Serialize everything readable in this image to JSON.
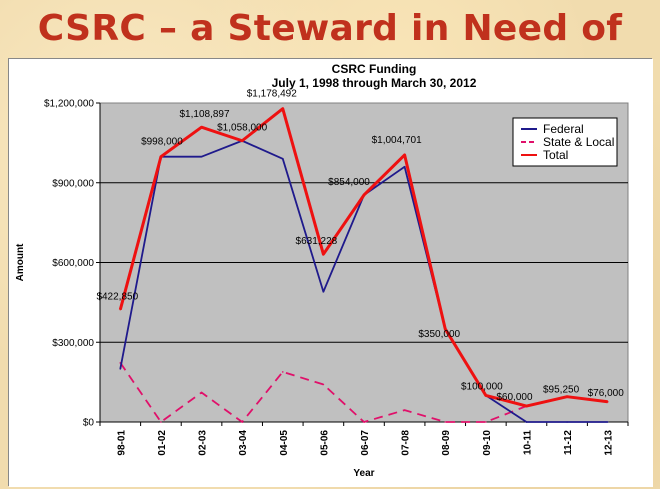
{
  "slide": {
    "title": "CSRC – a Steward in Need of Funding"
  },
  "chart_data": {
    "type": "line",
    "title": "CSRC Funding",
    "subtitle": "July 1, 1998 through March 30, 2012",
    "xlabel": "Year",
    "ylabel": "Amount",
    "ylim": [
      0,
      1200000
    ],
    "yticks": [
      0,
      300000,
      600000,
      900000,
      1200000
    ],
    "ytick_labels": [
      "$0",
      "$300,000",
      "$600,000",
      "$900,000",
      "$1,200,000"
    ],
    "grid": "horizontal",
    "legend": "top-right",
    "categories": [
      "98-01",
      "01-02",
      "02-03",
      "03-04",
      "04-05",
      "05-06",
      "06-07",
      "07-08",
      "08-09",
      "09-10",
      "10-11",
      "11-12",
      "12-13"
    ],
    "series": [
      {
        "name": "Federal",
        "color": "#1f1a8c",
        "dash": "solid",
        "values": [
          200000,
          998000,
          998000,
          1058000,
          990000,
          490000,
          854000,
          960000,
          350000,
          100000,
          0,
          0,
          0
        ]
      },
      {
        "name": "State & Local",
        "color": "#e0106a",
        "dash": "dashed",
        "values": [
          222850,
          0,
          110897,
          0,
          188492,
          141228,
          0,
          44701,
          0,
          0,
          60000,
          95250,
          76000
        ]
      },
      {
        "name": "Total",
        "color": "#ee1111",
        "dash": "solid",
        "values": [
          422850,
          998000,
          1108897,
          1058000,
          1178492,
          631228,
          854000,
          1004701,
          350000,
          100000,
          60000,
          95250,
          76000
        ]
      }
    ],
    "data_labels": [
      "$422,850",
      "$998,000",
      "$1,108,897",
      "$1,058,000",
      "$1,178,492",
      "$631,228",
      "$854,000",
      "$1,004,701",
      "$350,000",
      "$100,000",
      "$60,000",
      "$95,250",
      "$76,000"
    ]
  }
}
